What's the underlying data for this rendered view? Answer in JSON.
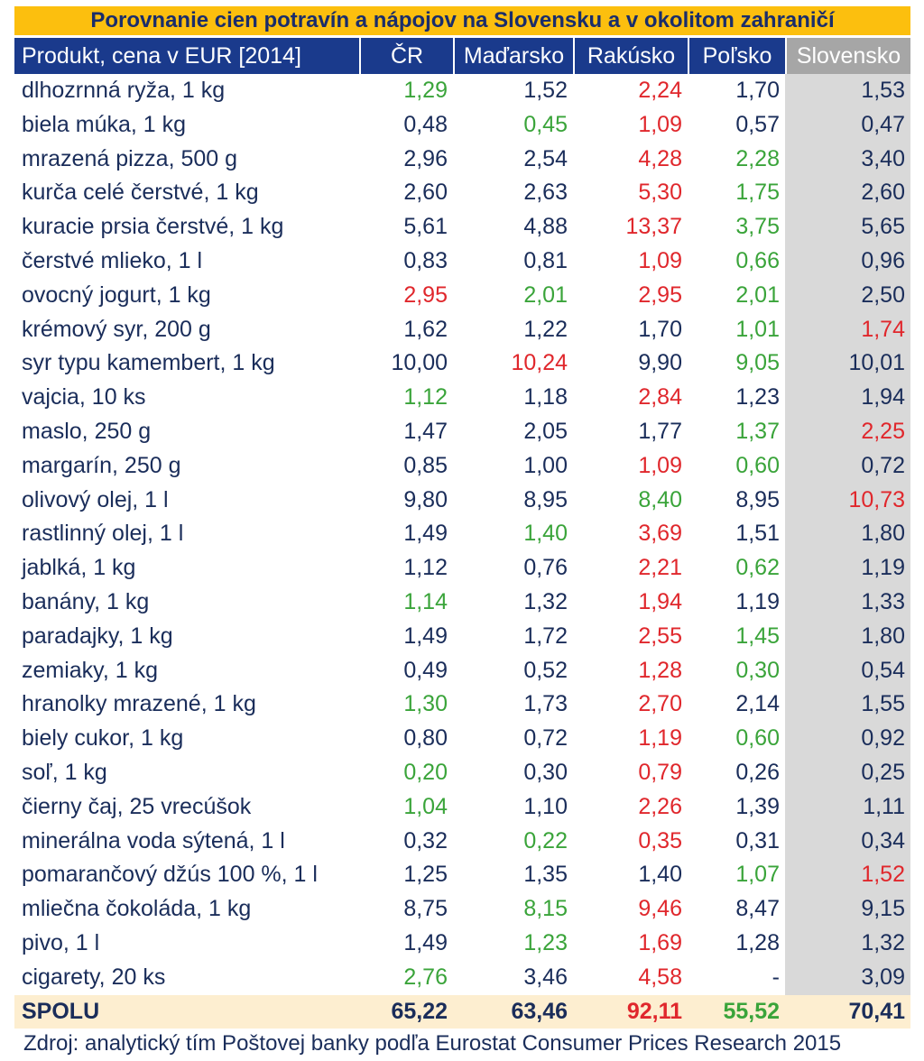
{
  "title": "Porovnanie cien potravín a nápojov na Slovensku a v okolitom zahraničí",
  "footer": "Zdroj: analytický tím Poštovej banky podľa Eurostat Consumer Prices Research 2015",
  "colors": {
    "header_bg": "#1a3a8c",
    "title_bg": "#fcbf0e",
    "highlight_col": "#d9d9d9",
    "total_bg": "#fdeed0",
    "low": "#3aa43a",
    "high": "#e0272c",
    "text": "#1a2d5a"
  },
  "chart_data": {
    "type": "table",
    "title": "Porovnanie cien potravín a nápojov na Slovensku a v okolitom zahraničí",
    "columns": [
      "Produkt, cena v EUR [2014]",
      "ČR",
      "Maďarsko",
      "Rakúsko",
      "Poľsko",
      "Slovensko"
    ],
    "rows": [
      {
        "product": "dlhozrnná ryža, 1 kg",
        "values": [
          "1,29",
          "1,52",
          "2,24",
          "1,70",
          "1,53"
        ],
        "style": [
          "g",
          "",
          "r",
          "",
          ""
        ]
      },
      {
        "product": "biela múka, 1 kg",
        "values": [
          "0,48",
          "0,45",
          "1,09",
          "0,57",
          "0,47"
        ],
        "style": [
          "",
          "g",
          "r",
          "",
          ""
        ]
      },
      {
        "product": "mrazená pizza, 500 g",
        "values": [
          "2,96",
          "2,54",
          "4,28",
          "2,28",
          "3,40"
        ],
        "style": [
          "",
          "",
          "r",
          "g",
          ""
        ]
      },
      {
        "product": "kurča celé čerstvé, 1 kg",
        "values": [
          "2,60",
          "2,63",
          "5,30",
          "1,75",
          "2,60"
        ],
        "style": [
          "",
          "",
          "r",
          "g",
          ""
        ]
      },
      {
        "product": "kuracie prsia čerstvé, 1 kg",
        "values": [
          "5,61",
          "4,88",
          "13,37",
          "3,75",
          "5,65"
        ],
        "style": [
          "",
          "",
          "r",
          "g",
          ""
        ]
      },
      {
        "product": "čerstvé mlieko, 1 l",
        "values": [
          "0,83",
          "0,81",
          "1,09",
          "0,66",
          "0,96"
        ],
        "style": [
          "",
          "",
          "r",
          "g",
          ""
        ]
      },
      {
        "product": "ovocný jogurt, 1 kg",
        "values": [
          "2,95",
          "2,01",
          "2,95",
          "2,01",
          "2,50"
        ],
        "style": [
          "r",
          "g",
          "r",
          "g",
          ""
        ]
      },
      {
        "product": "krémový syr, 200 g",
        "values": [
          "1,62",
          "1,22",
          "1,70",
          "1,01",
          "1,74"
        ],
        "style": [
          "",
          "",
          "",
          "g",
          "r"
        ]
      },
      {
        "product": "syr typu kamembert, 1 kg",
        "values": [
          "10,00",
          "10,24",
          "9,90",
          "9,05",
          "10,01"
        ],
        "style": [
          "",
          "r",
          "",
          "g",
          ""
        ]
      },
      {
        "product": "vajcia, 10 ks",
        "values": [
          "1,12",
          "1,18",
          "2,84",
          "1,23",
          "1,94"
        ],
        "style": [
          "g",
          "",
          "r",
          "",
          ""
        ]
      },
      {
        "product": "maslo, 250 g",
        "values": [
          "1,47",
          "2,05",
          "1,77",
          "1,37",
          "2,25"
        ],
        "style": [
          "",
          "",
          "",
          "g",
          "r"
        ]
      },
      {
        "product": "margarín, 250 g",
        "values": [
          "0,85",
          "1,00",
          "1,09",
          "0,60",
          "0,72"
        ],
        "style": [
          "",
          "",
          "r",
          "g",
          ""
        ]
      },
      {
        "product": "olivový olej, 1 l",
        "values": [
          "9,80",
          "8,95",
          "8,40",
          "8,95",
          "10,73"
        ],
        "style": [
          "",
          "",
          "g",
          "",
          "r"
        ]
      },
      {
        "product": "rastlinný olej, 1 l",
        "values": [
          "1,49",
          "1,40",
          "3,69",
          "1,51",
          "1,80"
        ],
        "style": [
          "",
          "g",
          "r",
          "",
          ""
        ]
      },
      {
        "product": "jablká, 1 kg",
        "values": [
          "1,12",
          "0,76",
          "2,21",
          "0,62",
          "1,19"
        ],
        "style": [
          "",
          "",
          "r",
          "g",
          ""
        ]
      },
      {
        "product": "banány, 1 kg",
        "values": [
          "1,14",
          "1,32",
          "1,94",
          "1,19",
          "1,33"
        ],
        "style": [
          "g",
          "",
          "r",
          "",
          ""
        ]
      },
      {
        "product": "paradajky, 1 kg",
        "values": [
          "1,49",
          "1,72",
          "2,55",
          "1,45",
          "1,80"
        ],
        "style": [
          "",
          "",
          "r",
          "g",
          ""
        ]
      },
      {
        "product": "zemiaky, 1 kg",
        "values": [
          "0,49",
          "0,52",
          "1,28",
          "0,30",
          "0,54"
        ],
        "style": [
          "",
          "",
          "r",
          "g",
          ""
        ]
      },
      {
        "product": "hranolky mrazené, 1 kg",
        "values": [
          "1,30",
          "1,73",
          "2,70",
          "2,14",
          "1,55"
        ],
        "style": [
          "g",
          "",
          "r",
          "",
          ""
        ]
      },
      {
        "product": "biely cukor, 1 kg",
        "values": [
          "0,80",
          "0,72",
          "1,19",
          "0,60",
          "0,92"
        ],
        "style": [
          "",
          "",
          "r",
          "g",
          ""
        ]
      },
      {
        "product": "soľ, 1 kg",
        "values": [
          "0,20",
          "0,30",
          "0,79",
          "0,26",
          "0,25"
        ],
        "style": [
          "g",
          "",
          "r",
          "",
          ""
        ]
      },
      {
        "product": "čierny čaj, 25 vrecúšok",
        "values": [
          "1,04",
          "1,10",
          "2,26",
          "1,39",
          "1,11"
        ],
        "style": [
          "g",
          "",
          "r",
          "",
          ""
        ]
      },
      {
        "product": "minerálna voda sýtená, 1 l",
        "values": [
          "0,32",
          "0,22",
          "0,35",
          "0,31",
          "0,34"
        ],
        "style": [
          "",
          "g",
          "r",
          "",
          ""
        ]
      },
      {
        "product": "pomarančový džús 100 %, 1 l",
        "values": [
          "1,25",
          "1,35",
          "1,40",
          "1,07",
          "1,52"
        ],
        "style": [
          "",
          "",
          "",
          "g",
          "r"
        ]
      },
      {
        "product": "mliečna čokoláda, 1 kg",
        "values": [
          "8,75",
          "8,15",
          "9,46",
          "8,47",
          "9,15"
        ],
        "style": [
          "",
          "g",
          "r",
          "",
          ""
        ]
      },
      {
        "product": "pivo, 1 l",
        "values": [
          "1,49",
          "1,23",
          "1,69",
          "1,28",
          "1,32"
        ],
        "style": [
          "",
          "g",
          "r",
          "",
          ""
        ]
      },
      {
        "product": "cigarety, 20 ks",
        "values": [
          "2,76",
          "3,46",
          "4,58",
          "-",
          "3,09"
        ],
        "style": [
          "g",
          "",
          "r",
          "",
          ""
        ]
      }
    ],
    "total": {
      "product": "SPOLU",
      "values": [
        "65,22",
        "63,46",
        "92,11",
        "55,52",
        "70,41"
      ],
      "style": [
        "",
        "",
        "r",
        "g",
        ""
      ]
    }
  }
}
